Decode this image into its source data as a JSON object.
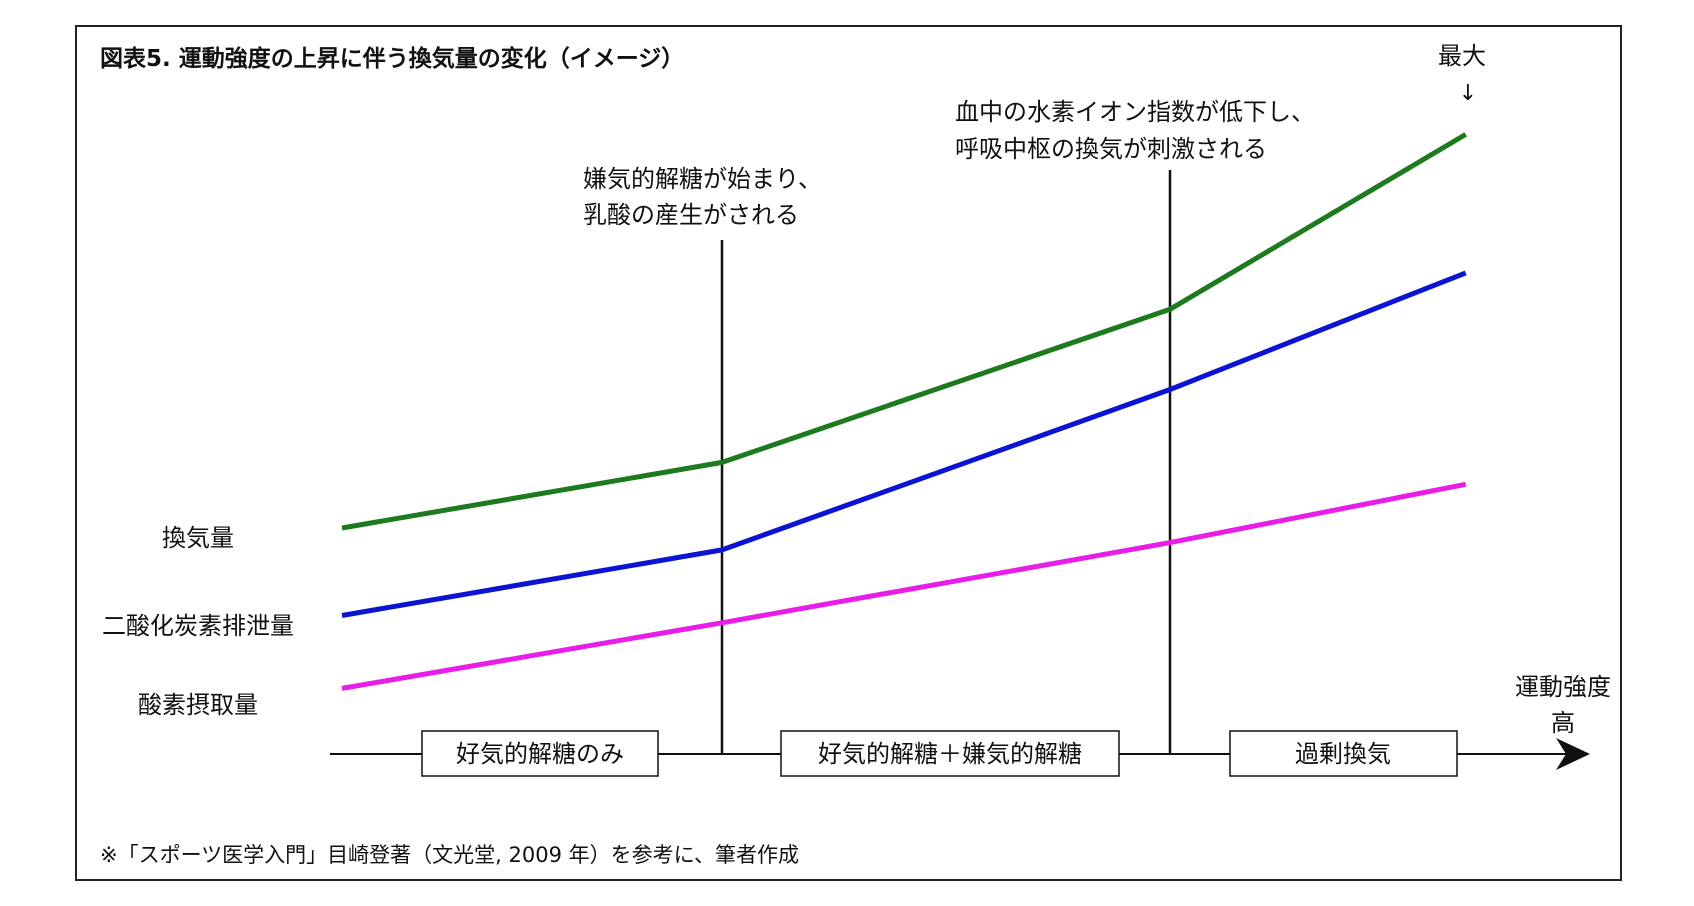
{
  "title": "図表5. 運動強度の上昇に伴う換気量の変化（イメージ）",
  "footnote": "※「スポーツ医学入門」目崎登著（文光堂, 2009 年）を参考に、筆者作成",
  "colors": {
    "ventilation": "#1e7a1e",
    "co2": "#0a14d2",
    "o2": "#e81ee8",
    "axis": "#111111"
  },
  "chart_data": {
    "type": "line",
    "title": "図表5. 運動強度の上昇に伴う換気量の変化（イメージ）",
    "xlabel": "運動強度 高",
    "ylabel": "",
    "x": [
      0,
      1,
      2,
      2.66
    ],
    "xlim": [
      0,
      2.66
    ],
    "ylim": [
      0,
      10
    ],
    "series": [
      {
        "name": "換気量",
        "key": "ventilation",
        "values": [
          3.1,
          4.0,
          6.1,
          8.5
        ]
      },
      {
        "name": "二酸化炭素排泄量",
        "key": "co2",
        "values": [
          1.9,
          2.8,
          5.0,
          6.6
        ]
      },
      {
        "name": "酸素摂取量",
        "key": "o2",
        "values": [
          0.9,
          1.8,
          2.9,
          3.7
        ]
      }
    ],
    "thresholds": [
      {
        "x": 1,
        "annotation": [
          "嫌気的解糖が始まり、",
          "乳酸の産生がされる"
        ]
      },
      {
        "x": 2,
        "annotation": [
          "血中の水素イオン指数が低下し、",
          "呼吸中枢の換気が刺激される"
        ]
      }
    ],
    "max_label": "最大",
    "max_arrow": "↓",
    "phases": [
      "好気的解糖のみ",
      "好気的解糖＋嫌気的解糖",
      "過剰換気"
    ],
    "axis_label_line1": "運動強度",
    "axis_label_line2": "高",
    "grid": false,
    "legend": "left"
  }
}
